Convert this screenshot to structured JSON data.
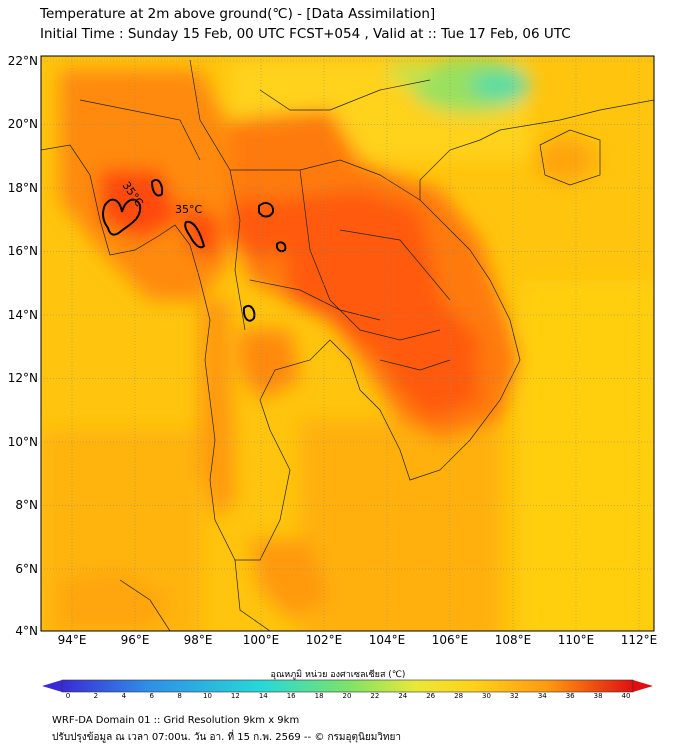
{
  "title_line1": "Temperature at 2m above ground(℃) - [Data Assimilation]",
  "title_line2": "Initial Time : Sunday 15 Feb, 00 UTC FCST+054 , Valid at :: Tue 17 Feb, 06 UTC",
  "map": {
    "lat_ticks": [
      "22°N",
      "20°N",
      "18°N",
      "16°N",
      "14°N",
      "12°N",
      "10°N",
      "8°N",
      "6°N",
      "4°N"
    ],
    "lon_ticks": [
      "94°E",
      "96°E",
      "98°E",
      "100°E",
      "102°E",
      "104°E",
      "106°E",
      "108°E",
      "110°E",
      "112°E"
    ],
    "lat_range": [
      4,
      22.2
    ],
    "lon_range": [
      93,
      112.5
    ],
    "contour_labels": [
      "35°C",
      "35°C"
    ],
    "contour_level": 35
  },
  "colorbar": {
    "label": "อุณหภูมิ หน่วย องศาเซลเซียส (℃)",
    "ticks": [
      "0",
      "2",
      "4",
      "6",
      "8",
      "10",
      "12",
      "14",
      "16",
      "18",
      "20",
      "22",
      "24",
      "26",
      "28",
      "30",
      "32",
      "34",
      "36",
      "38",
      "40"
    ],
    "range": [
      0,
      40
    ],
    "colors": [
      "#3a2bd6",
      "#2f6fe8",
      "#27c2e6",
      "#39e0b0",
      "#8ee36a",
      "#e9e838",
      "#ffd21a",
      "#ff9a10",
      "#ff4a0c",
      "#e01010"
    ]
  },
  "footer_line1": "WRF-DA Domain 01 :: Grid Resolution 9km x 9km",
  "footer_line2": "ปรับปรุงข้อมูล ณ เวลา 07:00น. วัน อา. ที่ 15 ก.พ. 2569 -- © กรมอุตุนิยมวิทยา"
}
